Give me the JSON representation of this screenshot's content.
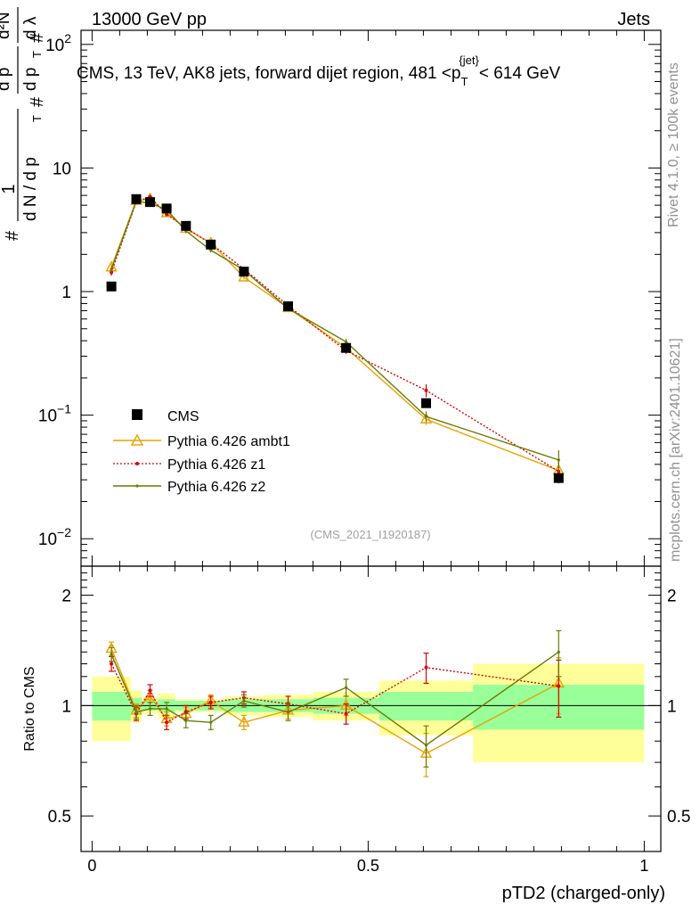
{
  "header": {
    "left": "13000 GeV pp",
    "right": "Jets"
  },
  "side_labels": {
    "rivet": "Rivet 4.1.0, ≥ 100k events",
    "mcplots": "mcplots.cern.ch [arXiv:2401.10621]"
  },
  "colors": {
    "cms": "#000000",
    "ambt1": "#e8a200",
    "z1": "#dd0000",
    "z2": "#6b7a00",
    "band_yellow": "#ffff99",
    "band_green": "#99ff99"
  },
  "chart_data": {
    "type": "line",
    "title": "CMS, 13 TeV, AK8 jets, forward dijet region, 481 <p_T^{jet}< 614 GeV",
    "title_parts": {
      "main": "CMS, 13 TeV, AK8 jets, forward dijet region, 481 <p",
      "sub": "T",
      "sup": "{jet}",
      "end": "< 614 GeV"
    },
    "analysis_id": "(CMS_2021_I1920187)",
    "xlabel": "pTD2 (charged-only)",
    "ylabel": "1/N dN/dλ",
    "ylabel_parts": {
      "hash1": "#",
      "one": "1",
      "den": "d N / d p",
      "den_sub": "T",
      "hash2": "#",
      "num_d": "d p",
      "num_d_sub": "T",
      "hash3": "#",
      "d2n": "d²N",
      "dlambda": "d λ"
    },
    "ratio_ylabel": "Ratio to CMS",
    "xlim": [
      -0.02,
      1.03
    ],
    "ylim": [
      0.006,
      130
    ],
    "ratio_ylim": [
      0.4,
      2.4
    ],
    "x_ticks": [
      {
        "v": 0,
        "label": "0"
      },
      {
        "v": 0.5,
        "label": "0.5"
      },
      {
        "v": 1,
        "label": "1"
      }
    ],
    "y_ticks": [
      {
        "v": 0.01,
        "base": "10",
        "exp": "−2"
      },
      {
        "v": 0.1,
        "base": "10",
        "exp": "−1"
      },
      {
        "v": 1,
        "base": "1",
        "exp": ""
      },
      {
        "v": 10,
        "base": "10",
        "exp": ""
      },
      {
        "v": 100,
        "base": "10",
        "exp": "2"
      }
    ],
    "ratio_ticks": [
      {
        "v": 0.5,
        "label": "0.5"
      },
      {
        "v": 1,
        "label": "1"
      },
      {
        "v": 2,
        "label": "2"
      }
    ],
    "bins": [
      [
        0.0,
        0.07
      ],
      [
        0.07,
        0.09
      ],
      [
        0.09,
        0.12
      ],
      [
        0.12,
        0.15
      ],
      [
        0.15,
        0.19
      ],
      [
        0.19,
        0.24
      ],
      [
        0.24,
        0.31
      ],
      [
        0.31,
        0.4
      ],
      [
        0.4,
        0.52
      ],
      [
        0.52,
        0.69
      ],
      [
        0.69,
        1.0
      ]
    ],
    "cms": {
      "name": "CMS",
      "x": [
        0.035,
        0.08,
        0.105,
        0.135,
        0.17,
        0.215,
        0.275,
        0.355,
        0.46,
        0.605,
        0.845
      ],
      "y": [
        1.1,
        5.6,
        5.3,
        4.7,
        3.4,
        2.4,
        1.45,
        0.76,
        0.35,
        0.125,
        0.031
      ]
    },
    "band_stat": [
      0.09,
      0.05,
      0.03,
      0.04,
      0.03,
      0.03,
      0.04,
      0.04,
      0.05,
      0.09,
      0.14
    ],
    "band_total": [
      0.2,
      0.1,
      0.05,
      0.08,
      0.04,
      0.04,
      0.06,
      0.07,
      0.09,
      0.17,
      0.3
    ],
    "series": [
      {
        "key": "ambt1",
        "name": "Pythia 6.426 ambt1",
        "marker": "triangle",
        "dash": false,
        "ratio": [
          1.43,
          0.97,
          1.06,
          0.92,
          0.95,
          1.03,
          0.9,
          0.97,
          1.0,
          0.74,
          1.15
        ],
        "ratio_err": [
          0.06,
          0.04,
          0.04,
          0.04,
          0.04,
          0.04,
          0.04,
          0.05,
          0.06,
          0.1,
          0.2
        ]
      },
      {
        "key": "z1",
        "name": "Pythia 6.426 z1",
        "marker": "dot",
        "dash": true,
        "ratio": [
          1.3,
          0.95,
          1.1,
          0.9,
          0.96,
          1.02,
          1.05,
          1.01,
          0.95,
          1.27,
          1.13
        ],
        "ratio_err": [
          0.06,
          0.04,
          0.04,
          0.04,
          0.04,
          0.04,
          0.04,
          0.05,
          0.06,
          0.12,
          0.2
        ]
      },
      {
        "key": "z2",
        "name": "Pythia 6.426 z2",
        "marker": "smalldot",
        "dash": false,
        "ratio": [
          1.38,
          0.96,
          0.98,
          0.98,
          0.91,
          0.9,
          1.03,
          0.96,
          1.12,
          0.78,
          1.4
        ],
        "ratio_err": [
          0.06,
          0.04,
          0.04,
          0.04,
          0.04,
          0.04,
          0.04,
          0.05,
          0.06,
          0.1,
          0.2
        ]
      }
    ]
  }
}
